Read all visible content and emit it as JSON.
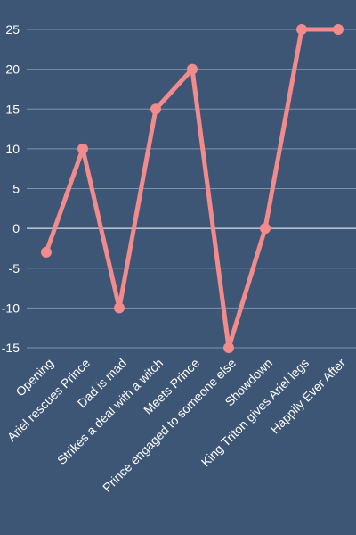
{
  "colors": {
    "background": "#3e5675",
    "line": "#f28b8c",
    "grid": "#7d93ad",
    "text": "#ffffff"
  },
  "chart_data": {
    "type": "line",
    "title": "",
    "xlabel": "",
    "ylabel": "",
    "categories": [
      "Opening",
      "Ariel rescues Prince",
      "Dad is mad",
      "Strikes a deal with a witch",
      "Meets Prince",
      "Prince engaged to someone else",
      "Showdown",
      "King Triton gives Ariel legs",
      "Happily Ever After"
    ],
    "values": [
      -3,
      10,
      -10,
      15,
      20,
      -15,
      0,
      25,
      25
    ],
    "ylim": [
      -15,
      25
    ],
    "yticks": [
      25,
      20,
      15,
      10,
      5,
      0,
      -5,
      -10,
      -15
    ],
    "grid": true,
    "legend": "none"
  }
}
